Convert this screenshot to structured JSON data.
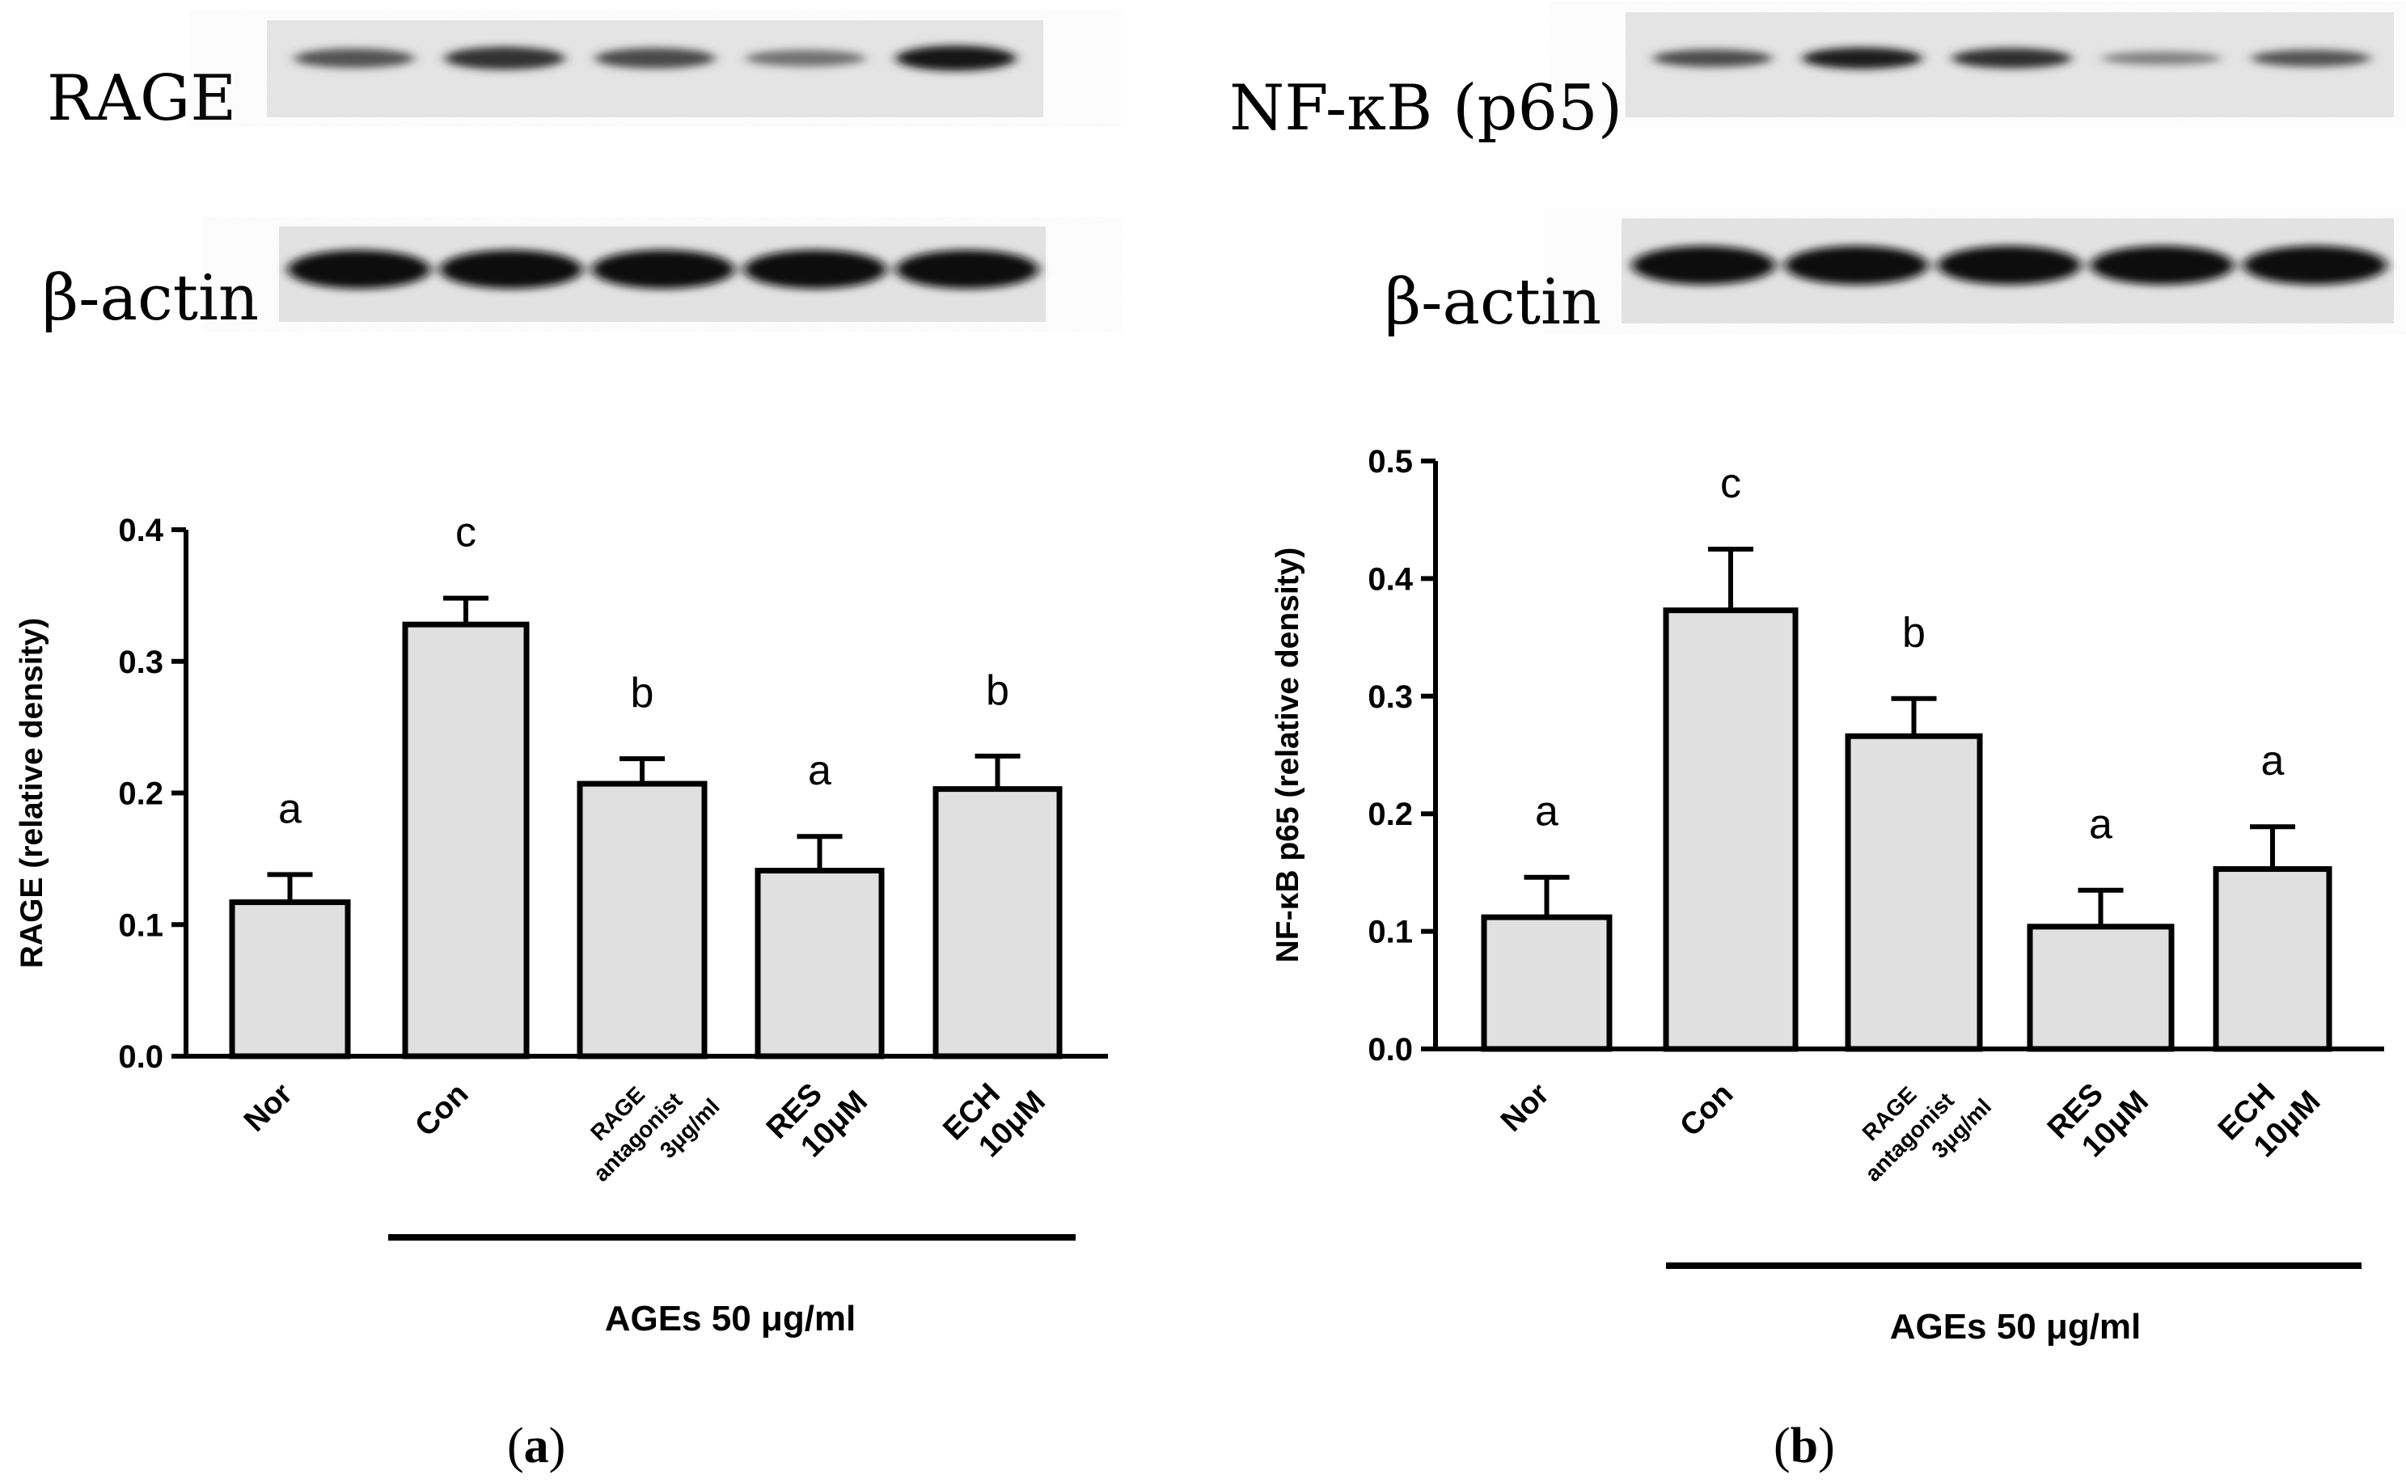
{
  "blots": {
    "a": {
      "target_label": "RAGE",
      "control_label": "β-actin",
      "target_intensity": [
        0.55,
        0.78,
        0.62,
        0.35,
        0.95
      ],
      "control_intensity": [
        1,
        1,
        1,
        1,
        1
      ]
    },
    "b": {
      "target_label": "NF-κB (p65)",
      "control_label": "β-actin",
      "target_intensity": [
        0.6,
        0.9,
        0.8,
        0.25,
        0.55
      ],
      "control_intensity": [
        1,
        1,
        1,
        1,
        1
      ]
    }
  },
  "panel_labels": {
    "a": {
      "open": "(",
      "letter": "a",
      "close": ")"
    },
    "b": {
      "open": "(",
      "letter": "b",
      "close": ")"
    }
  },
  "colors": {
    "bar_fill": "#e0e0e0",
    "bar_stroke": "#000000"
  },
  "chart_data": [
    {
      "type": "bar",
      "ylabel": "RAGE (relative density)",
      "ylim": [
        0,
        0.4
      ],
      "yticks": [
        "0.0",
        "0.1",
        "0.2",
        "0.3",
        "0.4"
      ],
      "categories": [
        [
          "Nor"
        ],
        [
          "Con"
        ],
        [
          "RAGE",
          "antagonist",
          "3μg/ml"
        ],
        [
          "RES",
          "10μM"
        ],
        [
          "ECH",
          "10μM"
        ]
      ],
      "values": [
        0.117,
        0.328,
        0.207,
        0.141,
        0.203
      ],
      "errors": [
        0.021,
        0.02,
        0.019,
        0.026,
        0.025
      ],
      "significance": [
        "a",
        "c",
        "b",
        "a",
        "b"
      ],
      "group_label": "AGEs 50 μg/ml"
    },
    {
      "type": "bar",
      "ylabel": "NF-κB p65 (relative density)",
      "ylim": [
        0,
        0.5
      ],
      "yticks": [
        "0.0",
        "0.1",
        "0.2",
        "0.3",
        "0.4",
        "0.5"
      ],
      "categories": [
        [
          "Nor"
        ],
        [
          "Con"
        ],
        [
          "RAGE",
          "antagonist",
          "3μg/ml"
        ],
        [
          "RES",
          "10μM"
        ],
        [
          "ECH",
          "10μM"
        ]
      ],
      "values": [
        0.112,
        0.373,
        0.266,
        0.104,
        0.153
      ],
      "errors": [
        0.034,
        0.052,
        0.032,
        0.031,
        0.036
      ],
      "significance": [
        "a",
        "c",
        "b",
        "a",
        "a"
      ],
      "group_label": "AGEs 50 μg/ml"
    }
  ]
}
